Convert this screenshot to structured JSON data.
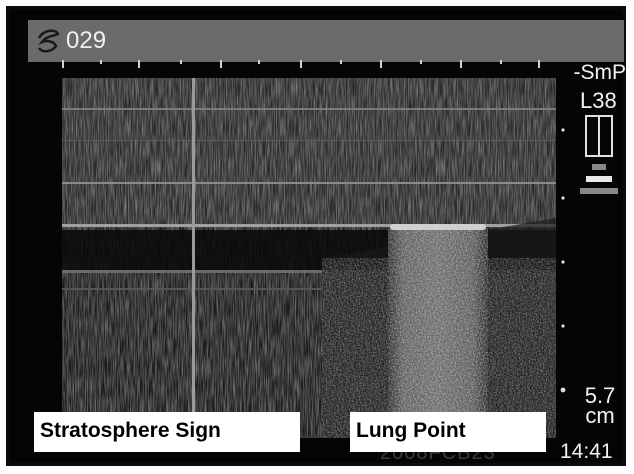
{
  "header": {
    "image_number": "029",
    "probe_icon": "probe-swirl-icon"
  },
  "side_panel": {
    "preset": "-SmP",
    "probe": "L38",
    "depth_value": "5.7",
    "depth_unit": "cm",
    "time": "14:41",
    "icon": "scan-sector-icon"
  },
  "annotations": {
    "left": "Stratosphere Sign",
    "right": "Lung Point"
  },
  "watermark": "2008FCB23",
  "colors": {
    "frame": "#050505",
    "header": "#6b6b6b",
    "label_bg": "#ffffff"
  }
}
